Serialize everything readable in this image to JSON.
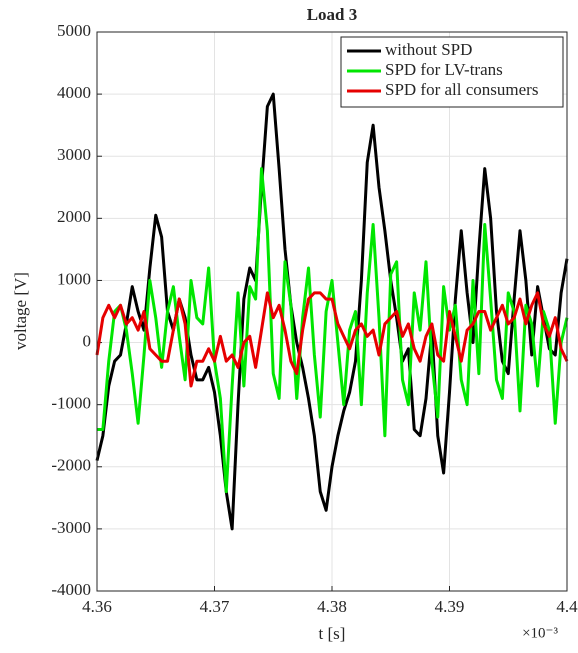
{
  "chart_data": {
    "type": "line",
    "title": "Load 3",
    "xlabel": "t [s]",
    "ylabel": "voltage [V]",
    "x_multiplier": "×10⁻³",
    "x": [
      4.36,
      4.3605,
      4.361,
      4.3615,
      4.362,
      4.3625,
      4.363,
      4.3635,
      4.364,
      4.3645,
      4.365,
      4.3655,
      4.366,
      4.3665,
      4.367,
      4.3675,
      4.368,
      4.3685,
      4.369,
      4.3695,
      4.37,
      4.3705,
      4.371,
      4.3715,
      4.372,
      4.3725,
      4.373,
      4.3735,
      4.374,
      4.3745,
      4.375,
      4.3755,
      4.376,
      4.3765,
      4.377,
      4.3775,
      4.378,
      4.3785,
      4.379,
      4.3795,
      4.38,
      4.3805,
      4.381,
      4.3815,
      4.382,
      4.3825,
      4.383,
      4.3835,
      4.384,
      4.3845,
      4.385,
      4.3855,
      4.386,
      4.3865,
      4.387,
      4.3875,
      4.388,
      4.3885,
      4.389,
      4.3895,
      4.39,
      4.3905,
      4.391,
      4.3915,
      4.392,
      4.3925,
      4.393,
      4.3935,
      4.394,
      4.3945,
      4.395,
      4.3955,
      4.396,
      4.3965,
      4.397,
      4.3975,
      4.398,
      4.3985,
      4.399,
      4.3995,
      4.4
    ],
    "series": [
      {
        "name": "without SPD",
        "color": "#000000",
        "values": [
          -1900,
          -1500,
          -700,
          -300,
          -200,
          300,
          900,
          500,
          200,
          1200,
          2050,
          1700,
          500,
          200,
          700,
          400,
          -200,
          -600,
          -600,
          -400,
          -800,
          -1500,
          -2400,
          -3000,
          -1000,
          700,
          1200,
          1000,
          2500,
          3800,
          4000,
          2800,
          1500,
          600,
          0,
          -400,
          -900,
          -1500,
          -2400,
          -2700,
          -2000,
          -1500,
          -1100,
          -800,
          -300,
          1000,
          2900,
          3500,
          2500,
          1800,
          1000,
          400,
          -300,
          -100,
          -1400,
          -1500,
          -900,
          200,
          -1500,
          -2100,
          -800,
          700,
          1800,
          800,
          0,
          1500,
          2800,
          2000,
          500,
          -300,
          -500,
          700,
          1800,
          1000,
          -200,
          900,
          400,
          -100,
          -200,
          800,
          1350
        ]
      },
      {
        "name": "SPD for LV-trans",
        "color": "#00e600",
        "values": [
          -1400,
          -1400,
          -300,
          500,
          600,
          200,
          -500,
          -1300,
          -200,
          1000,
          400,
          -400,
          500,
          900,
          100,
          -600,
          1000,
          400,
          300,
          1200,
          -300,
          -900,
          -2400,
          -700,
          800,
          -700,
          900,
          700,
          2800,
          1800,
          -500,
          -900,
          1300,
          600,
          -900,
          400,
          1200,
          -200,
          -1200,
          500,
          1000,
          0,
          -1000,
          200,
          500,
          -1000,
          800,
          1900,
          400,
          -1500,
          1100,
          1300,
          -600,
          -1000,
          800,
          200,
          1300,
          -300,
          -1200,
          900,
          200,
          600,
          -600,
          -1000,
          1000,
          -500,
          1900,
          700,
          -600,
          -900,
          800,
          500,
          -1100,
          600,
          300,
          -700,
          500,
          200,
          -1300,
          0,
          400
        ]
      },
      {
        "name": "SPD for all consumers",
        "color": "#e60000",
        "values": [
          -200,
          400,
          600,
          400,
          600,
          300,
          400,
          200,
          500,
          -100,
          -200,
          -300,
          -300,
          200,
          700,
          300,
          -700,
          -300,
          -300,
          -100,
          -300,
          100,
          -300,
          -200,
          -400,
          0,
          100,
          -400,
          200,
          800,
          400,
          600,
          200,
          -300,
          -500,
          200,
          700,
          800,
          800,
          700,
          700,
          300,
          100,
          -100,
          200,
          300,
          100,
          200,
          -200,
          300,
          400,
          500,
          100,
          300,
          -100,
          -300,
          100,
          300,
          -200,
          -300,
          500,
          100,
          -300,
          200,
          300,
          500,
          500,
          200,
          400,
          600,
          300,
          400,
          700,
          300,
          600,
          800,
          300,
          100,
          400,
          -100,
          -300
        ]
      }
    ],
    "xlim": [
      4.36,
      4.4
    ],
    "xticks": [
      4.36,
      4.37,
      4.38,
      4.39,
      4.4
    ],
    "ylim": [
      -4000,
      5000
    ],
    "yticks": [
      -4000,
      -3000,
      -2000,
      -1000,
      0,
      1000,
      2000,
      3000,
      4000,
      5000
    ],
    "grid": true,
    "legend": "top-right"
  }
}
